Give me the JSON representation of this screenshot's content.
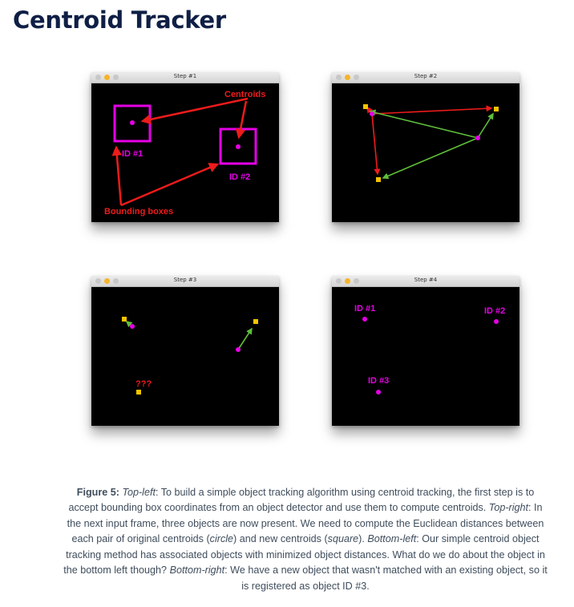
{
  "page": {
    "title": "Centroid Tracker"
  },
  "colors": {
    "magenta": "#e600e6",
    "red": "#ee1b1b",
    "green": "#5fbf3a",
    "yellow": "#f5c400",
    "title": "#0f1f45",
    "caption": "#3f4d5c"
  },
  "windows": [
    {
      "title": "Step #1",
      "labels": {
        "centroids": "Centroids",
        "id1": "ID #1",
        "id2": "ID #2",
        "bounding_boxes": "Bounding boxes"
      }
    },
    {
      "title": "Step #2"
    },
    {
      "title": "Step #3",
      "labels": {
        "unknown": "???"
      }
    },
    {
      "title": "Step #4",
      "labels": {
        "id1": "ID #1",
        "id2": "ID #2",
        "id3": "ID #3"
      }
    }
  ],
  "caption": {
    "figure_label": "Figure 5:",
    "s1_label": "Top-left",
    "s1_text": ": To build a simple object tracking algorithm using centroid tracking, the first step is to accept bounding box coordinates from an object detector and use them to compute centroids. ",
    "s2_label": "Top-right",
    "s2_text": ": In the next input frame, three objects are now present. We need to compute the Euclidean distances between each pair of original centroids (",
    "circle": "circle",
    "s2_mid": ") and new centroids (",
    "square": "square",
    "s2_end": "). ",
    "s3_label": "Bottom-left",
    "s3_text": ": Our simple centroid object tracking method has associated objects with minimized object distances. What do we do about the object in the bottom left though? ",
    "s4_label": "Bottom-right",
    "s4_text": ": We have a new object that wasn't matched with an existing object, so it is registered as object ID #3."
  }
}
